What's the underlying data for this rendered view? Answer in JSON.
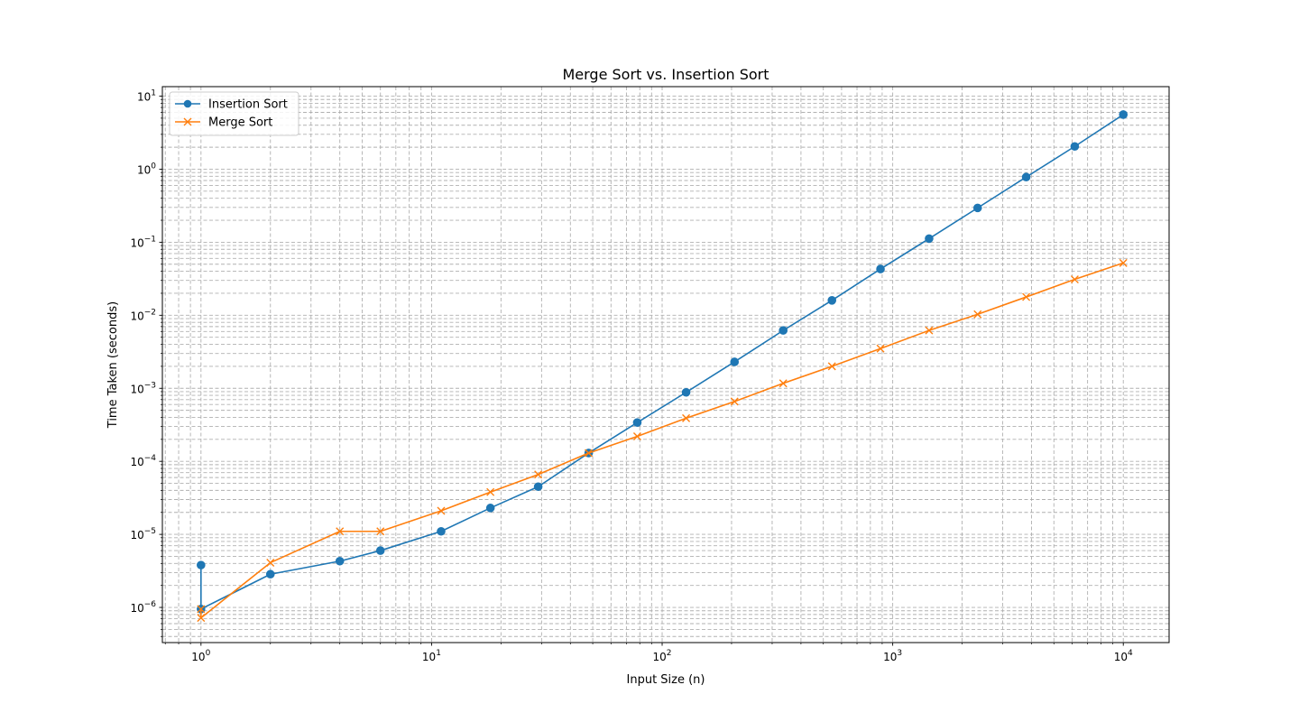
{
  "chart_data": {
    "type": "line",
    "title": "Merge Sort vs. Insertion Sort",
    "xlabel": "Input Size (n)",
    "ylabel": "Time Taken (seconds)",
    "xscale": "log",
    "yscale": "log",
    "xlim": [
      0.68,
      15800
    ],
    "ylim": [
      3.3e-07,
      13.5
    ],
    "x_ticks": [
      {
        "base": "10",
        "exp": "0",
        "value": 1
      },
      {
        "base": "10",
        "exp": "1",
        "value": 10
      },
      {
        "base": "10",
        "exp": "2",
        "value": 100
      },
      {
        "base": "10",
        "exp": "3",
        "value": 1000
      },
      {
        "base": "10",
        "exp": "4",
        "value": 10000
      }
    ],
    "y_ticks": [
      {
        "base": "10",
        "exp": "−6",
        "value": 1e-06
      },
      {
        "base": "10",
        "exp": "−5",
        "value": 1e-05
      },
      {
        "base": "10",
        "exp": "−4",
        "value": 0.0001
      },
      {
        "base": "10",
        "exp": "−3",
        "value": 0.001
      },
      {
        "base": "10",
        "exp": "−2",
        "value": 0.01
      },
      {
        "base": "10",
        "exp": "−1",
        "value": 0.1
      },
      {
        "base": "10",
        "exp": "0",
        "value": 1
      },
      {
        "base": "10",
        "exp": "1",
        "value": 10
      }
    ],
    "grid": "both (major and minor), dashed",
    "legend_position": "upper-left",
    "x": [
      1,
      1,
      2,
      4,
      6,
      11,
      18,
      29,
      48,
      78,
      127,
      206,
      335,
      545,
      885,
      1438,
      2335,
      3792,
      6158,
      10000
    ],
    "series": [
      {
        "name": "Insertion Sort",
        "color": "#1f77b4",
        "marker": "circle",
        "values": [
          3.8e-06,
          9.5e-07,
          2.85e-06,
          4.3e-06,
          6e-06,
          1.1e-05,
          2.3e-05,
          4.5e-05,
          0.00013,
          0.00034,
          0.00088,
          0.0023,
          0.0062,
          0.016,
          0.043,
          0.112,
          0.295,
          0.78,
          2.05,
          5.6
        ]
      },
      {
        "name": "Merge Sort",
        "color": "#ff7f0e",
        "marker": "x",
        "values": [
          9.5e-07,
          7.2e-07,
          4.1e-06,
          1.1e-05,
          1.1e-05,
          2.1e-05,
          3.8e-05,
          6.6e-05,
          0.00013,
          0.00022,
          0.00039,
          0.00066,
          0.00117,
          0.002,
          0.0035,
          0.0062,
          0.0103,
          0.0178,
          0.031,
          0.052
        ]
      }
    ]
  }
}
